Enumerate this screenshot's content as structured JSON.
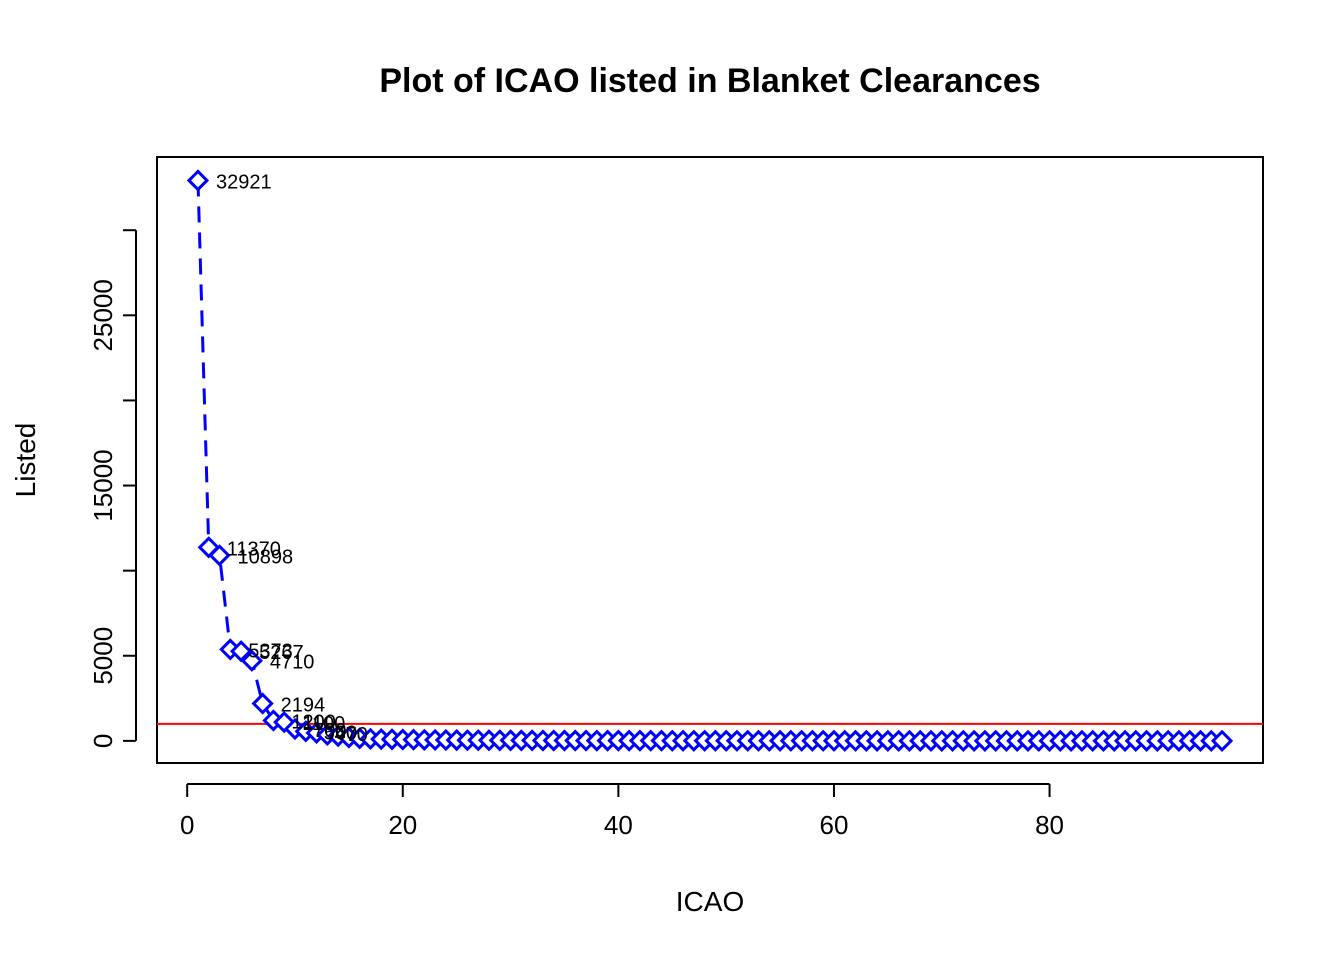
{
  "chart_data": {
    "type": "line",
    "title": "Plot of ICAO listed in Blanket Clearances",
    "xlabel": "ICAO",
    "ylabel": "Listed",
    "xlim": [
      -2.8,
      99.8
    ],
    "ylim": [
      -1300,
      34300
    ],
    "x_ticks": [
      0,
      20,
      40,
      60,
      80
    ],
    "x_tick_labels": [
      "0",
      "20",
      "40",
      "60",
      "80"
    ],
    "y_ticks": [
      0,
      5000,
      10000,
      15000,
      20000,
      25000,
      30000
    ],
    "y_tick_labels": [
      "0",
      "5000",
      "",
      "15000",
      "",
      "25000",
      ""
    ],
    "reference_line": {
      "y": 1000,
      "color": "#ff0000"
    },
    "series": [
      {
        "color": "#0000ff",
        "marker": "diamond",
        "line_style": "dashed",
        "x": [
          1,
          2,
          3,
          4,
          5,
          6,
          7,
          8,
          9,
          10,
          11,
          12,
          13,
          14,
          15,
          16,
          17,
          18,
          19,
          20,
          21,
          22,
          23,
          24,
          25,
          26,
          27,
          28,
          29,
          30,
          31,
          32,
          33,
          34,
          35,
          36,
          37,
          38,
          39,
          40,
          41,
          42,
          43,
          44,
          45,
          46,
          47,
          48,
          49,
          50,
          51,
          52,
          53,
          54,
          55,
          56,
          57,
          58,
          59,
          60,
          61,
          62,
          63,
          64,
          65,
          66,
          67,
          68,
          69,
          70,
          71,
          72,
          73,
          74,
          75,
          76,
          77,
          78,
          79,
          80,
          81,
          82,
          83,
          84,
          85,
          86,
          87,
          88,
          89,
          90,
          91,
          92,
          93,
          94,
          95,
          96
        ],
        "y": [
          32921,
          11370,
          10898,
          5373,
          5267,
          4710,
          2194,
          1200,
          1100,
          700,
          560,
          470,
          350,
          280,
          200,
          150,
          120,
          100,
          90,
          80,
          70,
          60,
          55,
          50,
          45,
          40,
          38,
          35,
          32,
          30,
          28,
          26,
          24,
          22,
          20,
          19,
          18,
          17,
          16,
          15,
          14,
          13,
          12,
          11,
          10,
          10,
          9,
          9,
          8,
          8,
          7,
          7,
          6,
          6,
          6,
          5,
          5,
          5,
          4,
          4,
          4,
          4,
          3,
          3,
          3,
          3,
          3,
          2,
          2,
          2,
          2,
          2,
          2,
          2,
          2,
          1,
          1,
          1,
          1,
          1,
          1,
          1,
          1,
          1,
          1,
          1,
          1,
          1,
          1,
          1,
          1,
          1,
          1,
          1,
          1,
          1
        ]
      }
    ],
    "point_labels": [
      {
        "x": 1,
        "y": 32921,
        "text": "32921"
      },
      {
        "x": 2,
        "y": 11370,
        "text": "11370"
      },
      {
        "x": 3,
        "y": 10898,
        "text": "10898"
      },
      {
        "x": 4,
        "y": 5373,
        "text": "5373"
      },
      {
        "x": 5,
        "y": 5267,
        "text": "5267"
      },
      {
        "x": 6,
        "y": 4710,
        "text": "4710"
      },
      {
        "x": 7,
        "y": 2194,
        "text": "2194"
      },
      {
        "x": 8,
        "y": 1200,
        "text": "1200"
      },
      {
        "x": 9,
        "y": 1100,
        "text": "1100"
      },
      {
        "x": 10,
        "y": 700,
        "text": "700"
      },
      {
        "x": 11,
        "y": 560,
        "text": "560"
      },
      {
        "x": 12,
        "y": 470,
        "text": "470"
      }
    ]
  }
}
